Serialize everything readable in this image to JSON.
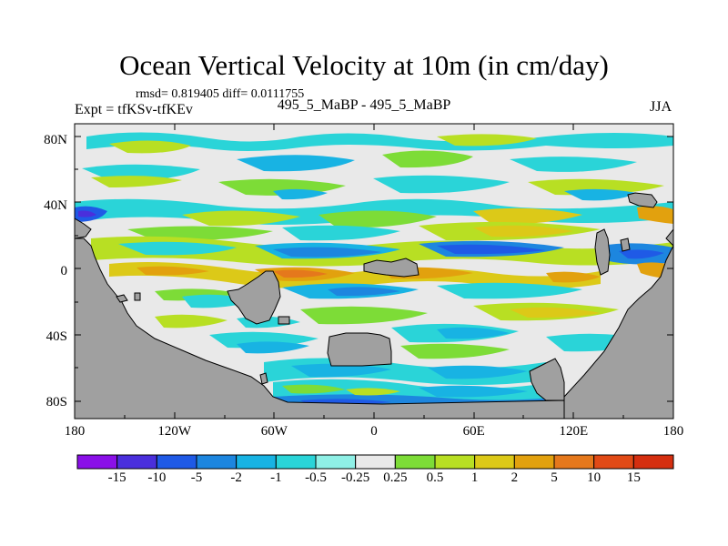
{
  "header": {
    "title": "Ocean Vertical Velocity at 10m (in cm/day)",
    "stats": "rmsd= 0.819405 diff= 0.0111755",
    "expt": "Expt = tfKSv-tfKEv",
    "runs": "495_5_MaBP - 495_5_MaBP",
    "season": "JJA"
  },
  "chart_data": {
    "type": "heatmap",
    "title": "Ocean Vertical Velocity at 10m (in cm/day)",
    "subtitle": "495_5_MaBP - 495_5_MaBP",
    "xlabel": "",
    "ylabel": "",
    "xlim": [
      -180,
      180
    ],
    "ylim": [
      -90,
      90
    ],
    "x_ticks": [
      "180",
      "120W",
      "60W",
      "0",
      "60E",
      "120E",
      "180"
    ],
    "y_ticks": [
      "80N",
      "40N",
      "0",
      "40S",
      "80S"
    ],
    "colorbar": {
      "levels": [
        "-15",
        "-10",
        "-5",
        "-2",
        "-1",
        "-0.5",
        "-0.25",
        "0.25",
        "0.5",
        "1",
        "2",
        "5",
        "10",
        "15"
      ],
      "colors": [
        "#8a10e8",
        "#4a2fdc",
        "#1f5ae6",
        "#1d86df",
        "#18b3e3",
        "#2ad4d8",
        "#8ff0e6",
        "#e9e9e9",
        "#7ddc37",
        "#b8df23",
        "#dcc918",
        "#e2a10e",
        "#e5781c",
        "#e14a16",
        "#d52f10"
      ]
    },
    "land_color": "#a0a0a0"
  }
}
